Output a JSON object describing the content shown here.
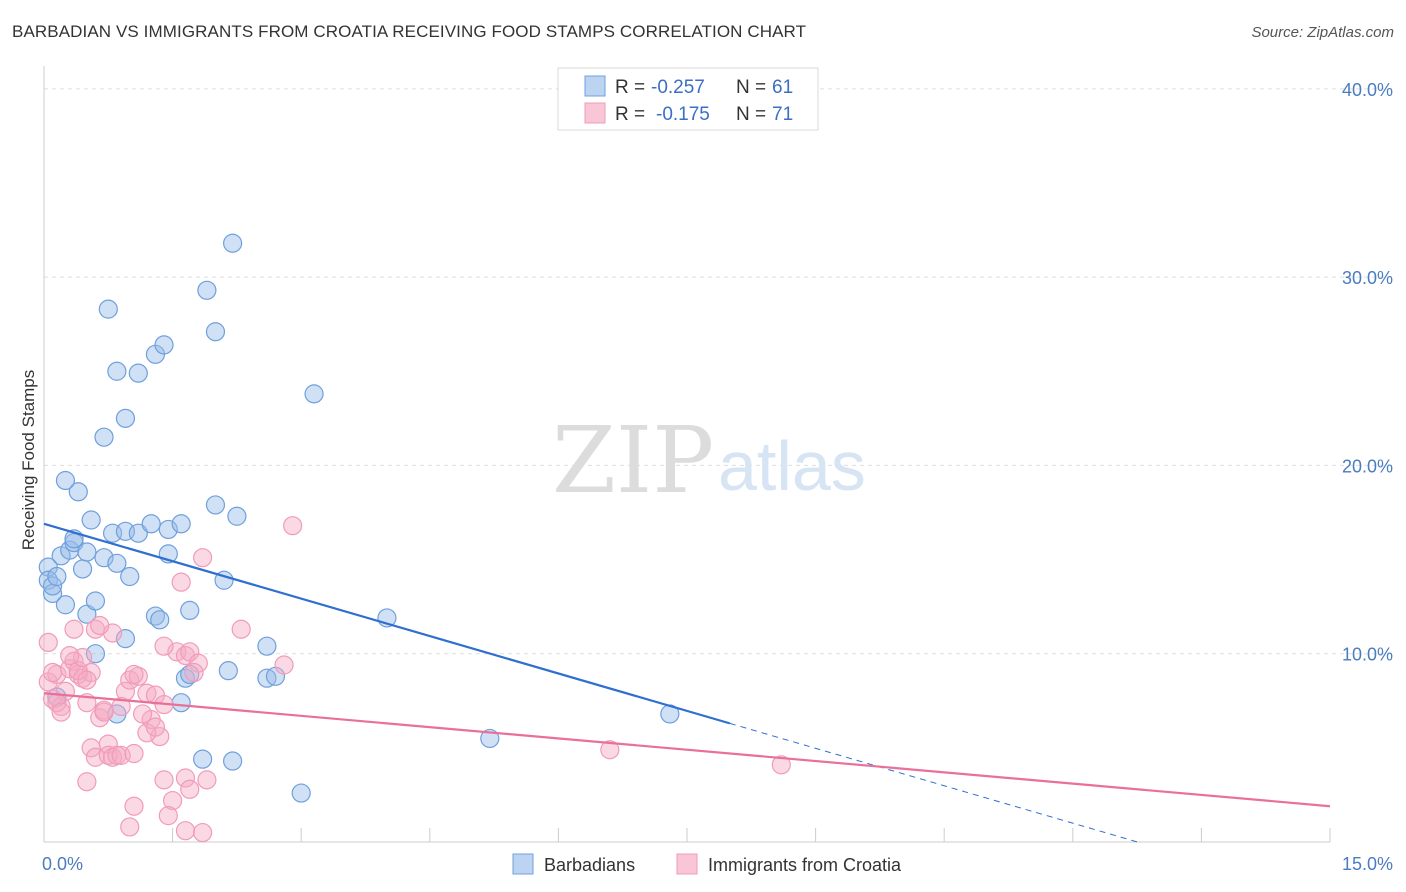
{
  "title": "BARBADIAN VS IMMIGRANTS FROM CROATIA RECEIVING FOOD STAMPS CORRELATION CHART",
  "source": "Source: ZipAtlas.com",
  "watermark": {
    "zip": "ZIP",
    "atlas": "atlas"
  },
  "chart_data": {
    "type": "scatter",
    "title": "BARBADIAN VS IMMIGRANTS FROM CROATIA RECEIVING FOOD STAMPS CORRELATION CHART",
    "xlabel": "",
    "ylabel": "Receiving Food Stamps",
    "xlim": [
      0,
      15
    ],
    "ylim": [
      0,
      41
    ],
    "x_tick_labels": [
      "0.0%",
      "15.0%"
    ],
    "y_ticks": [
      10,
      20,
      30,
      40
    ],
    "y_tick_labels": [
      "10.0%",
      "20.0%",
      "30.0%",
      "40.0%"
    ],
    "grid": true,
    "legend_placement": "top-center",
    "colors": {
      "barbadians": "#6fa0dc",
      "croatia": "#f29bb8",
      "blue_line": "#2f6fcf",
      "pink_line": "#e8709a",
      "tick": "#4a7cc0"
    },
    "legend": [
      {
        "r_label": "R =",
        "r_value": "-0.257",
        "n_label": "N =",
        "n_value": "61"
      },
      {
        "r_label": "R =",
        "r_value": "-0.175",
        "n_label": "N =",
        "n_value": "71"
      }
    ],
    "series": [
      {
        "name": "Barbadians",
        "trend": {
          "x0": 0,
          "y0": 16.9,
          "x1": 8.0,
          "y1": 6.3,
          "dash_to_x": 15.0,
          "dash_to_y": -2.9
        },
        "points": [
          [
            0.05,
            14.6
          ],
          [
            0.05,
            13.9
          ],
          [
            0.1,
            13.2
          ],
          [
            0.1,
            13.6
          ],
          [
            0.15,
            14.1
          ],
          [
            0.2,
            15.2
          ],
          [
            0.25,
            12.6
          ],
          [
            0.3,
            15.5
          ],
          [
            0.35,
            15.9
          ],
          [
            0.35,
            16.1
          ],
          [
            0.4,
            18.6
          ],
          [
            0.45,
            14.5
          ],
          [
            0.5,
            15.4
          ],
          [
            0.55,
            17.1
          ],
          [
            0.5,
            12.1
          ],
          [
            0.6,
            10.0
          ],
          [
            0.6,
            12.8
          ],
          [
            0.7,
            15.1
          ],
          [
            0.8,
            16.4
          ],
          [
            0.85,
            14.8
          ],
          [
            0.95,
            16.5
          ],
          [
            1.0,
            14.1
          ],
          [
            1.1,
            16.4
          ],
          [
            1.25,
            16.9
          ],
          [
            1.3,
            12.0
          ],
          [
            1.35,
            11.8
          ],
          [
            1.45,
            16.6
          ],
          [
            1.45,
            15.3
          ],
          [
            1.6,
            16.9
          ],
          [
            1.6,
            7.4
          ],
          [
            1.65,
            8.7
          ],
          [
            1.7,
            8.9
          ],
          [
            1.7,
            12.3
          ],
          [
            1.85,
            4.4
          ],
          [
            2.0,
            17.9
          ],
          [
            2.1,
            13.9
          ],
          [
            2.15,
            9.1
          ],
          [
            2.25,
            17.3
          ],
          [
            2.2,
            4.3
          ],
          [
            2.6,
            10.4
          ],
          [
            2.6,
            8.7
          ],
          [
            2.7,
            8.8
          ],
          [
            3.0,
            2.6
          ],
          [
            0.25,
            19.2
          ],
          [
            0.7,
            21.5
          ],
          [
            0.95,
            22.5
          ],
          [
            0.85,
            25.0
          ],
          [
            1.1,
            24.9
          ],
          [
            1.3,
            25.9
          ],
          [
            1.4,
            26.4
          ],
          [
            0.75,
            28.3
          ],
          [
            1.9,
            29.3
          ],
          [
            2.0,
            27.1
          ],
          [
            2.2,
            31.8
          ],
          [
            3.15,
            23.8
          ],
          [
            4.0,
            11.9
          ],
          [
            5.2,
            5.5
          ],
          [
            7.3,
            6.8
          ],
          [
            0.15,
            7.7
          ],
          [
            0.85,
            6.8
          ],
          [
            0.95,
            10.8
          ]
        ]
      },
      {
        "name": "Immigrants from Croatia",
        "trend": {
          "x0": 0,
          "y0": 7.9,
          "x1": 15.0,
          "y1": 1.9
        },
        "points": [
          [
            0.05,
            10.6
          ],
          [
            0.05,
            8.5
          ],
          [
            0.1,
            7.6
          ],
          [
            0.15,
            8.9
          ],
          [
            0.2,
            7.2
          ],
          [
            0.25,
            8.0
          ],
          [
            0.3,
            9.2
          ],
          [
            0.35,
            11.3
          ],
          [
            0.35,
            9.6
          ],
          [
            0.4,
            8.9
          ],
          [
            0.45,
            8.7
          ],
          [
            0.5,
            7.4
          ],
          [
            0.55,
            9.0
          ],
          [
            0.6,
            11.3
          ],
          [
            0.65,
            6.6
          ],
          [
            0.7,
            7.0
          ],
          [
            0.75,
            5.2
          ],
          [
            0.8,
            11.1
          ],
          [
            0.55,
            5.0
          ],
          [
            0.6,
            4.5
          ],
          [
            0.75,
            4.6
          ],
          [
            0.8,
            4.5
          ],
          [
            0.85,
            4.6
          ],
          [
            0.9,
            4.6
          ],
          [
            0.95,
            8.0
          ],
          [
            1.0,
            8.6
          ],
          [
            1.1,
            8.8
          ],
          [
            1.2,
            7.9
          ],
          [
            1.25,
            6.5
          ],
          [
            1.35,
            5.6
          ],
          [
            1.2,
            5.8
          ],
          [
            1.3,
            6.1
          ],
          [
            1.05,
            4.7
          ],
          [
            1.4,
            3.3
          ],
          [
            1.5,
            2.2
          ],
          [
            1.55,
            10.1
          ],
          [
            1.6,
            13.8
          ],
          [
            1.65,
            3.4
          ],
          [
            1.7,
            2.8
          ],
          [
            1.65,
            0.6
          ],
          [
            1.85,
            0.5
          ],
          [
            1.45,
            1.4
          ],
          [
            1.05,
            1.9
          ],
          [
            1.0,
            0.8
          ],
          [
            1.4,
            10.4
          ],
          [
            1.65,
            9.9
          ],
          [
            1.7,
            10.1
          ],
          [
            1.8,
            9.5
          ],
          [
            1.9,
            3.3
          ],
          [
            1.85,
            15.1
          ],
          [
            2.3,
            11.3
          ],
          [
            2.8,
            9.4
          ],
          [
            2.9,
            16.8
          ],
          [
            1.05,
            8.9
          ],
          [
            0.15,
            7.4
          ],
          [
            0.2,
            6.9
          ],
          [
            0.4,
            9.1
          ],
          [
            0.45,
            9.8
          ],
          [
            0.5,
            8.6
          ],
          [
            0.65,
            11.5
          ],
          [
            0.7,
            6.9
          ],
          [
            0.9,
            7.2
          ],
          [
            1.15,
            6.8
          ],
          [
            1.3,
            7.8
          ],
          [
            1.4,
            7.3
          ],
          [
            6.6,
            4.9
          ],
          [
            8.6,
            4.1
          ],
          [
            0.3,
            9.9
          ],
          [
            0.1,
            9.0
          ],
          [
            0.5,
            3.2
          ],
          [
            1.75,
            9.0
          ]
        ]
      }
    ]
  }
}
